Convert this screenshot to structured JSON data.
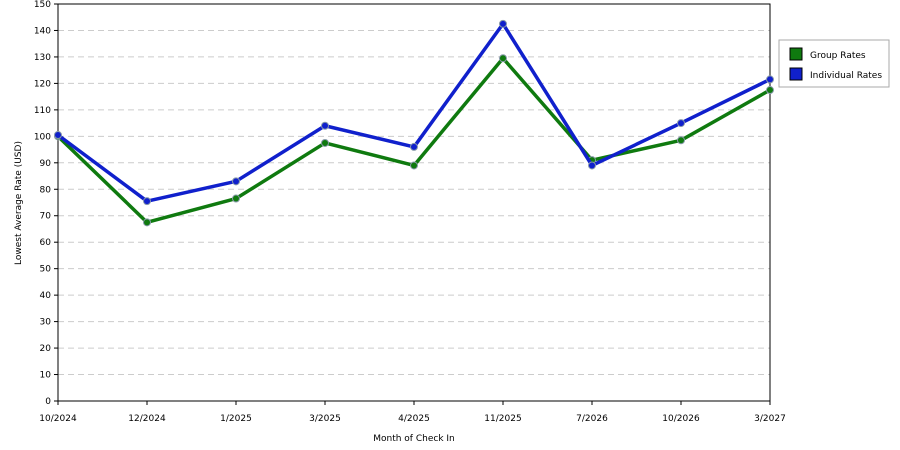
{
  "chart_data": {
    "type": "line",
    "title": "",
    "xlabel": "Month of Check In",
    "ylabel": "Lowest Average Rate (USD)",
    "categories": [
      "10/2024",
      "12/2024",
      "1/2025",
      "3/2025",
      "4/2025",
      "11/2025",
      "7/2026",
      "10/2026",
      "3/2027"
    ],
    "ylim": [
      0,
      150
    ],
    "yticks": [
      0,
      10,
      20,
      30,
      40,
      50,
      60,
      70,
      80,
      90,
      100,
      110,
      120,
      130,
      140,
      150
    ],
    "grid": true,
    "legend_position": "right",
    "series": [
      {
        "name": "Group Rates",
        "color": "#0f7a0f",
        "values": [
          100,
          67.5,
          76.5,
          97.5,
          89,
          129.5,
          91,
          98.5,
          117.5
        ]
      },
      {
        "name": "Individual Rates",
        "color": "#1020cc",
        "values": [
          100.5,
          75.5,
          83,
          104,
          96,
          142.5,
          89,
          105,
          121.5
        ]
      }
    ]
  }
}
